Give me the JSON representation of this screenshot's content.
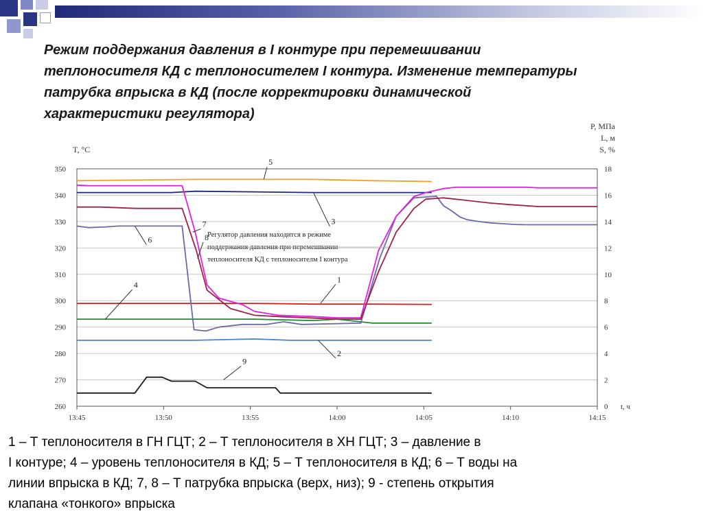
{
  "slide": {
    "title_lines": [
      "Режим поддержания давления в I контуре при перемешивании",
      "теплоносителя КД с теплоносителем I контура. Изменение температуры",
      "патрубка впрыска в КД (после корректировки динамической",
      "характеристики регулятора)"
    ],
    "caption_lines": [
      "1 – Т теплоносителя в ГН ГЦТ; 2 – Т теплоносителя в ХН ГЦТ; 3 – давление в",
      "I контуре; 4 – уровень теплоносителя в КД; 5 – Т теплоносителя в КД; 6 – Т воды на",
      "линии впрыска в КД; 7, 8 – Т патрубка впрыска (верх, низ); 9 - степень открытия",
      "клапана «тонкого» впрыска"
    ],
    "colors": {
      "topbar": "#1f2a7a",
      "logo": "#2a3585"
    }
  },
  "chart_data": {
    "type": "line",
    "left_axis": {
      "title": "T, °C",
      "min": 260,
      "max": 350,
      "ticks": [
        "350",
        "340",
        "330",
        "320",
        "310",
        "300",
        "290",
        "280",
        "270",
        "260"
      ]
    },
    "right_axis": {
      "title_lines": [
        "P, МПа",
        "L, м",
        "S, %"
      ],
      "min": 0,
      "max": 18,
      "ticks": [
        "18",
        "16",
        "14",
        "12",
        "10",
        "8",
        "6",
        "4",
        "2",
        "0"
      ]
    },
    "x_axis": {
      "label": "t, ч",
      "ticks": [
        "13:45",
        "13:50",
        "13:55",
        "14:00",
        "14:05",
        "14:10",
        "14:15"
      ],
      "min_minutes": 0,
      "max_minutes": 30
    },
    "grid": "horizontal",
    "annotation_lines": [
      "Регулятор давления находится в режиме",
      "поддержания давления при перемешвании",
      "теплоносителя КД с теплоносителм I контура"
    ],
    "series": [
      {
        "name": "1",
        "axis": "left",
        "color": "#d42020",
        "points": [
          [
            0,
            299
          ],
          [
            8,
            299
          ],
          [
            15,
            299
          ],
          [
            20,
            298.7
          ],
          [
            25,
            298.7
          ],
          [
            30,
            298.6
          ]
        ],
        "label": "1",
        "label_at": [
          22,
          307
        ],
        "leader_to": [
          20.6,
          299
        ]
      },
      {
        "name": "2",
        "axis": "left",
        "color": "#4a7fd4",
        "points": [
          [
            0,
            285
          ],
          [
            10,
            285
          ],
          [
            15,
            285.5
          ],
          [
            18,
            285
          ],
          [
            25,
            285
          ],
          [
            30,
            285
          ]
        ],
        "label": "2",
        "label_at": [
          22,
          279
        ],
        "leader_to": [
          20.4,
          285
        ]
      },
      {
        "name": "3",
        "axis": "right",
        "color": "#1a2a7a",
        "points": [
          [
            0,
            16.2
          ],
          [
            8,
            16.2
          ],
          [
            10,
            16.3
          ],
          [
            20,
            16.2
          ],
          [
            25,
            16.2
          ],
          [
            30,
            16.2
          ]
        ],
        "label": "3",
        "label_at": [
          21.5,
          13.8
        ],
        "leader_to": [
          20.0,
          16.2
        ]
      },
      {
        "name": "4",
        "axis": "right",
        "color": "#1e8a2a",
        "points": [
          [
            0,
            6.6
          ],
          [
            10,
            6.6
          ],
          [
            15,
            6.6
          ],
          [
            20,
            6.5
          ],
          [
            22,
            6.6
          ],
          [
            25,
            6.3
          ],
          [
            30,
            6.3
          ]
        ],
        "label": "4",
        "label_at": [
          4.8,
          9
        ],
        "leader_to": [
          2.4,
          6.6
        ]
      },
      {
        "name": "5",
        "axis": "left",
        "color": "#f0a020",
        "points": [
          [
            0,
            345.5
          ],
          [
            10,
            346
          ],
          [
            15,
            346
          ],
          [
            20,
            346
          ],
          [
            25,
            345.5
          ],
          [
            30,
            345.2
          ]
        ],
        "label": "5",
        "label_at": [
          16.2,
          351.5
        ],
        "leader_to": [
          15.8,
          346
        ]
      },
      {
        "name": "6",
        "axis": "left",
        "color": "#6a6aa8",
        "points": [
          [
            0,
            328.3
          ],
          [
            1,
            327.7
          ],
          [
            2.5,
            328
          ],
          [
            3.5,
            328.3
          ],
          [
            4.7,
            328.3
          ],
          [
            6.5,
            328.3
          ],
          [
            7.5,
            328.3
          ],
          [
            8.9,
            328.3
          ],
          [
            9.9,
            289
          ],
          [
            10.9,
            288.5
          ],
          [
            12,
            290
          ],
          [
            14,
            291
          ],
          [
            16,
            291
          ],
          [
            17.5,
            292
          ],
          [
            19,
            291
          ],
          [
            24,
            291.5
          ],
          [
            25.6,
            316
          ],
          [
            27,
            332
          ],
          [
            28.5,
            339
          ],
          [
            30.4,
            339.6
          ],
          [
            31,
            336
          ],
          [
            31.7,
            334
          ],
          [
            32.4,
            331.7
          ],
          [
            33,
            330.7
          ],
          [
            34,
            330
          ],
          [
            35,
            329.5
          ],
          [
            36,
            329.2
          ],
          [
            37,
            328.9
          ],
          [
            38,
            328.8
          ],
          [
            39,
            328.8
          ],
          [
            40,
            328.8
          ],
          [
            42,
            328.8
          ],
          [
            44,
            328.8
          ]
        ],
        "label": "6",
        "label_at": [
          6.0,
          322
        ],
        "leader_to": [
          4.9,
          328.3
        ]
      },
      {
        "name": "7",
        "axis": "left",
        "color": "#e020e0",
        "points": [
          [
            0,
            343.8
          ],
          [
            1,
            343.6
          ],
          [
            5,
            343.6
          ],
          [
            8,
            343.6
          ],
          [
            8.9,
            343.6
          ],
          [
            10,
            326
          ],
          [
            11,
            306
          ],
          [
            12,
            301
          ],
          [
            14,
            298.5
          ],
          [
            15,
            296
          ],
          [
            17,
            294.5
          ],
          [
            20,
            294
          ],
          [
            22,
            293.5
          ],
          [
            24,
            293.5
          ],
          [
            25.5,
            319
          ],
          [
            27,
            332
          ],
          [
            28.5,
            339.5
          ],
          [
            29.5,
            341
          ],
          [
            31,
            342.5
          ],
          [
            32,
            343
          ],
          [
            34,
            343
          ],
          [
            36,
            343
          ],
          [
            38,
            343
          ],
          [
            39,
            342.8
          ],
          [
            42,
            342.8
          ],
          [
            44,
            342.8
          ]
        ],
        "label": "7",
        "label_at": [
          10.6,
          328
        ],
        "leader_to": [
          9.8,
          326
        ]
      },
      {
        "name": "8",
        "axis": "left",
        "color": "#a02048",
        "points": [
          [
            0,
            335.5
          ],
          [
            2,
            335.5
          ],
          [
            5,
            335
          ],
          [
            8,
            335
          ],
          [
            8.9,
            335
          ],
          [
            10.1,
            319
          ],
          [
            11,
            304
          ],
          [
            12,
            300.5
          ],
          [
            13,
            297
          ],
          [
            15,
            294.5
          ],
          [
            17,
            294
          ],
          [
            22,
            293
          ],
          [
            24,
            293
          ],
          [
            25.5,
            311
          ],
          [
            27,
            326
          ],
          [
            28.5,
            335
          ],
          [
            29.5,
            338.5
          ],
          [
            31,
            339
          ],
          [
            33,
            338
          ],
          [
            35,
            337
          ],
          [
            37,
            336.3
          ],
          [
            38,
            336
          ],
          [
            39,
            335.7
          ],
          [
            40,
            335.7
          ],
          [
            44,
            335.7
          ]
        ],
        "label": "8",
        "label_at": [
          10.8,
          323
        ],
        "leader_to": [
          10.2,
          316
        ]
      },
      {
        "name": "9",
        "axis": "right",
        "color": "#1a1a1a",
        "points": [
          [
            0,
            1
          ],
          [
            4.9,
            1
          ],
          [
            5.9,
            2.2
          ],
          [
            7.2,
            2.2
          ],
          [
            8,
            1.9
          ],
          [
            10,
            1.9
          ],
          [
            11,
            1.4
          ],
          [
            16,
            1.4
          ],
          [
            16.8,
            1.4
          ],
          [
            17.2,
            1.0
          ],
          [
            20,
            1.0
          ],
          [
            30,
            1.0
          ]
        ],
        "label": "9",
        "label_at": [
          14.0,
          3.2
        ],
        "leader_to": [
          12.4,
          2.0
        ]
      }
    ]
  }
}
